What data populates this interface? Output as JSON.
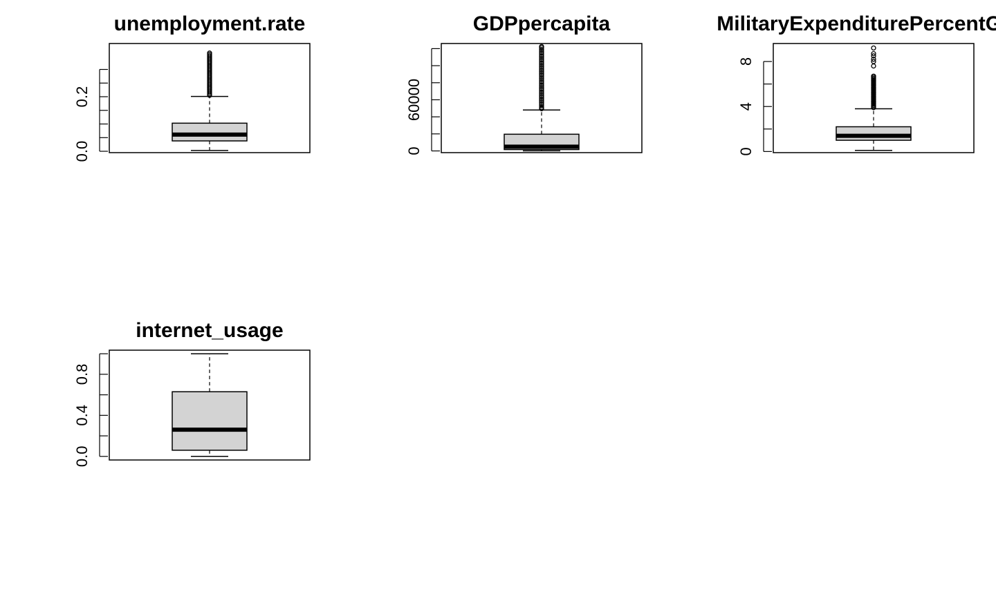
{
  "chart_data": [
    {
      "type": "boxplot",
      "title": "unemployment.rate",
      "xlabel": "",
      "ylabel": "",
      "ylim": [
        -0.005,
        0.395
      ],
      "y_ticks": [
        0.0,
        0.05,
        0.1,
        0.15,
        0.2,
        0.25,
        0.3
      ],
      "y_tick_labels": [
        "0.0",
        "",
        "",
        "",
        "0.2",
        "",
        ""
      ],
      "box": {
        "min": 0.003,
        "q1": 0.038,
        "median": 0.061,
        "q3": 0.103,
        "max": 0.201
      },
      "outliers": [
        0.205,
        0.21,
        0.215,
        0.22,
        0.225,
        0.23,
        0.235,
        0.24,
        0.245,
        0.25,
        0.255,
        0.26,
        0.265,
        0.27,
        0.275,
        0.28,
        0.285,
        0.29,
        0.295,
        0.3,
        0.305,
        0.31,
        0.315,
        0.32,
        0.325,
        0.33,
        0.335,
        0.34,
        0.345,
        0.35,
        0.355,
        0.36
      ]
    },
    {
      "type": "boxplot",
      "title": "GDPpercapita",
      "xlabel": "",
      "ylabel": "",
      "ylim": [
        -2000,
        126000
      ],
      "y_ticks": [
        0,
        20000,
        40000,
        60000,
        80000,
        100000,
        120000
      ],
      "y_tick_labels": [
        "0",
        "",
        "",
        "60000",
        "",
        "",
        ""
      ],
      "box": {
        "min": 100,
        "q1": 1600,
        "median": 5000,
        "q3": 19600,
        "max": 48000
      },
      "outliers": [
        49500,
        51000,
        53000,
        55000,
        57000,
        59000,
        61000,
        63000,
        65000,
        67000,
        69000,
        71000,
        73000,
        75000,
        77000,
        79000,
        81000,
        83000,
        85000,
        87000,
        89000,
        91000,
        93000,
        95000,
        97000,
        99000,
        101000,
        103000,
        105000,
        107000,
        109000,
        111000,
        113000,
        115000,
        117000,
        119000,
        121000,
        122500
      ]
    },
    {
      "type": "boxplot",
      "title": "MilitaryExpenditurePercentGDP",
      "xlabel": "",
      "ylabel": "",
      "ylim": [
        -0.1,
        9.6
      ],
      "y_ticks": [
        0,
        2,
        4,
        6,
        8
      ],
      "y_tick_labels": [
        "0",
        "",
        "4",
        "",
        "8"
      ],
      "box": {
        "min": 0.1,
        "q1": 1.0,
        "median": 1.4,
        "q3": 2.2,
        "max": 3.8
      },
      "outliers": [
        3.9,
        4.0,
        4.1,
        4.2,
        4.3,
        4.4,
        4.5,
        4.6,
        4.7,
        4.8,
        4.9,
        5.0,
        5.1,
        5.2,
        5.3,
        5.4,
        5.5,
        5.6,
        5.7,
        5.8,
        5.9,
        6.0,
        6.1,
        6.2,
        6.3,
        6.4,
        6.5,
        6.6,
        6.7,
        7.6,
        8.0,
        8.2,
        8.5,
        8.7,
        9.2
      ]
    },
    {
      "type": "boxplot",
      "title": "internet_usage",
      "xlabel": "",
      "ylabel": "",
      "ylim": [
        -0.035,
        1.035
      ],
      "y_ticks": [
        0.0,
        0.2,
        0.4,
        0.6,
        0.8,
        1.0
      ],
      "y_tick_labels": [
        "0.0",
        "",
        "0.4",
        "",
        "0.8",
        ""
      ],
      "box": {
        "min": 0.0,
        "q1": 0.06,
        "median": 0.26,
        "q3": 0.63,
        "max": 1.0
      },
      "outliers": []
    }
  ]
}
